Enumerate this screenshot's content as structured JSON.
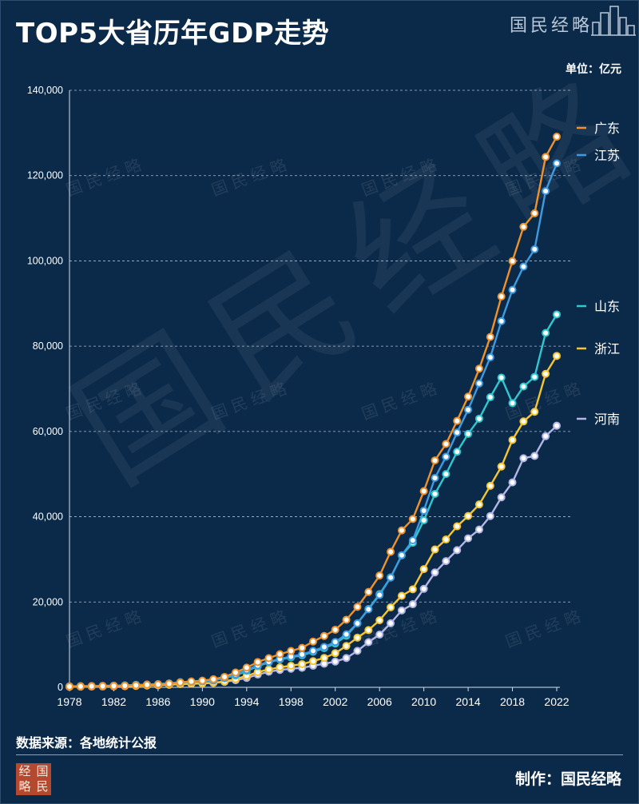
{
  "title": "TOP5大省历年GDP走势",
  "brand": "国民经略",
  "unit_label": "单位：亿元",
  "source": "数据来源：各地统计公报",
  "credit": "制作：国民经略",
  "seal_chars": [
    "经",
    "国",
    "略",
    "民"
  ],
  "watermark": "国民经略",
  "chart_data": {
    "type": "line",
    "x": [
      1978,
      1979,
      1980,
      1981,
      1982,
      1983,
      1984,
      1985,
      1986,
      1987,
      1988,
      1989,
      1990,
      1991,
      1992,
      1993,
      1994,
      1995,
      1996,
      1997,
      1998,
      1999,
      2000,
      2001,
      2002,
      2003,
      2004,
      2005,
      2006,
      2007,
      2008,
      2009,
      2010,
      2011,
      2012,
      2013,
      2014,
      2015,
      2016,
      2017,
      2018,
      2019,
      2020,
      2021,
      2022
    ],
    "xticks": [
      1978,
      1982,
      1986,
      1990,
      1994,
      1998,
      2002,
      2006,
      2010,
      2014,
      2018,
      2022
    ],
    "ylim": [
      0,
      140000
    ],
    "yticks": [
      "0",
      "20,000",
      "40,000",
      "60,000",
      "80,000",
      "100,000",
      "120,000",
      "140,000"
    ],
    "yticks_values": [
      0,
      20000,
      40000,
      60000,
      80000,
      100000,
      120000,
      140000
    ],
    "grid": "horizontal dashed",
    "series": [
      {
        "name": "广东",
        "color": "#f0922b",
        "values": [
          186,
          209,
          250,
          290,
          339,
          368,
          458,
          577,
          668,
          847,
          1155,
          1381,
          1559,
          1893,
          2448,
          3469,
          4619,
          5933,
          6835,
          7774,
          8531,
          9250,
          10741,
          12039,
          13502,
          15845,
          18865,
          22367,
          26204,
          31777,
          36797,
          39483,
          46013,
          53210,
          57068,
          62475,
          68173,
          74732,
          82163,
          91649,
          99945,
          107987,
          111152,
          124370,
          129119
        ]
      },
      {
        "name": "江苏",
        "color": "#3e9be0",
        "values": [
          249,
          298,
          320,
          350,
          390,
          438,
          518,
          652,
          744,
          922,
          1208,
          1322,
          1417,
          1601,
          2136,
          2998,
          4057,
          5155,
          6004,
          6680,
          7200,
          7697,
          8554,
          9457,
          10632,
          12443,
          15004,
          18306,
          21645,
          25741,
          30982,
          34457,
          41425,
          49110,
          54058,
          59753,
          65088,
          71256,
          77388,
          85870,
          93208,
          98657,
          102719,
          116364,
          122876
        ]
      },
      {
        "name": "山东",
        "color": "#2fc8cf",
        "values": [
          225,
          251,
          292,
          346,
          395,
          459,
          581,
          681,
          742,
          892,
          1117,
          1293,
          1511,
          1810,
          2196,
          2770,
          3844,
          4953,
          5883,
          6537,
          7021,
          7493,
          8337,
          9195,
          10276,
          12078,
          15022,
          18367,
          21847,
          25777,
          30933,
          33897,
          39170,
          45362,
          50013,
          55230,
          59427,
          63002,
          68024,
          72634,
          66649,
          70540,
          72798,
          83096,
          87435
        ]
      },
      {
        "name": "浙江",
        "color": "#f7c62f",
        "values": [
          124,
          157,
          180,
          204,
          234,
          257,
          323,
          429,
          502,
          607,
          770,
          850,
          905,
          1089,
          1376,
          1925,
          2689,
          3558,
          4189,
          4686,
          5053,
          5444,
          6141,
          6898,
          8004,
          9705,
          11649,
          13418,
          15718,
          18754,
          21463,
          22990,
          27722,
          32319,
          34665,
          37757,
          40173,
          42886,
          47251,
          51768,
          58003,
          62352,
          64613,
          73516,
          77715
        ]
      },
      {
        "name": "河南",
        "color": "#b4b6e6",
        "values": [
          163,
          190,
          229,
          249,
          263,
          328,
          370,
          451,
          502,
          610,
          749,
          851,
          935,
          1045,
          1280,
          1660,
          2217,
          2989,
          3661,
          4080,
          4356,
          4576,
          5053,
          5533,
          6035,
          6868,
          8554,
          10587,
          12362,
          15012,
          18019,
          19480,
          23092,
          26931,
          29599,
          32156,
          34938,
          37002,
          40160,
          44553,
          48056,
          53718,
          54259,
          58887,
          61345
        ]
      }
    ]
  }
}
